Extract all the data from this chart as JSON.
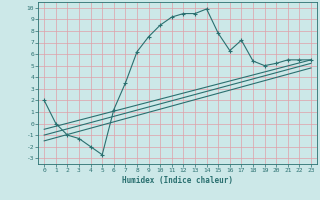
{
  "xlabel": "Humidex (Indice chaleur)",
  "xlim": [
    -0.5,
    23.5
  ],
  "ylim": [
    -3.5,
    10.5
  ],
  "xticks": [
    0,
    1,
    2,
    3,
    4,
    5,
    6,
    7,
    8,
    9,
    10,
    11,
    12,
    13,
    14,
    15,
    16,
    17,
    18,
    19,
    20,
    21,
    22,
    23
  ],
  "yticks": [
    -3,
    -2,
    -1,
    0,
    1,
    2,
    3,
    4,
    5,
    6,
    7,
    8,
    9,
    10
  ],
  "bg_color": "#cce8e8",
  "grid_color": "#e0a0a8",
  "line_color": "#2a7070",
  "main_line_x": [
    0,
    1,
    2,
    3,
    4,
    5,
    6,
    7,
    8,
    9,
    10,
    11,
    12,
    13,
    14,
    15,
    16,
    17,
    18,
    19,
    20,
    21,
    22,
    23
  ],
  "main_line_y": [
    2.0,
    0.0,
    -1.0,
    -1.3,
    -2.0,
    -2.7,
    1.2,
    3.5,
    6.2,
    7.5,
    8.5,
    9.2,
    9.5,
    9.5,
    9.9,
    7.8,
    6.3,
    7.2,
    5.4,
    5.0,
    5.2,
    5.5,
    5.5,
    5.5
  ],
  "trend1_x": [
    0,
    23
  ],
  "trend1_y": [
    -0.5,
    5.5
  ],
  "trend2_x": [
    0,
    23
  ],
  "trend2_y": [
    -1.0,
    5.2
  ],
  "trend3_x": [
    0,
    23
  ],
  "trend3_y": [
    -1.5,
    4.8
  ]
}
